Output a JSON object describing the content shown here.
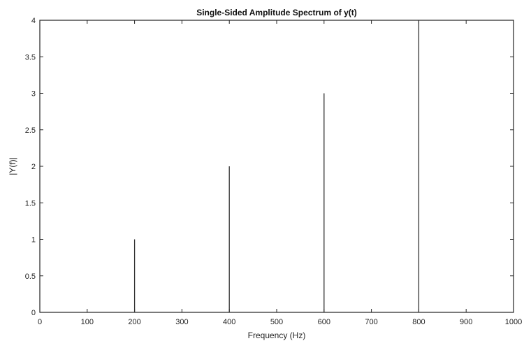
{
  "chart_data": {
    "type": "bar",
    "title": "Single-Sided Amplitude Spectrum of y(t)",
    "xlabel": "Frequency (Hz)",
    "ylabel": "|Y(f)|",
    "xlim": [
      0,
      1000
    ],
    "ylim": [
      0,
      4
    ],
    "x_ticks": [
      0,
      100,
      200,
      300,
      400,
      500,
      600,
      700,
      800,
      900,
      1000
    ],
    "y_ticks": [
      0,
      0.5,
      1,
      1.5,
      2,
      2.5,
      3,
      3.5,
      4
    ],
    "grid": false,
    "series": [
      {
        "x": [
          200,
          400,
          600,
          800
        ],
        "y": [
          1,
          2,
          3,
          4
        ]
      }
    ],
    "line_color": "#333333"
  }
}
